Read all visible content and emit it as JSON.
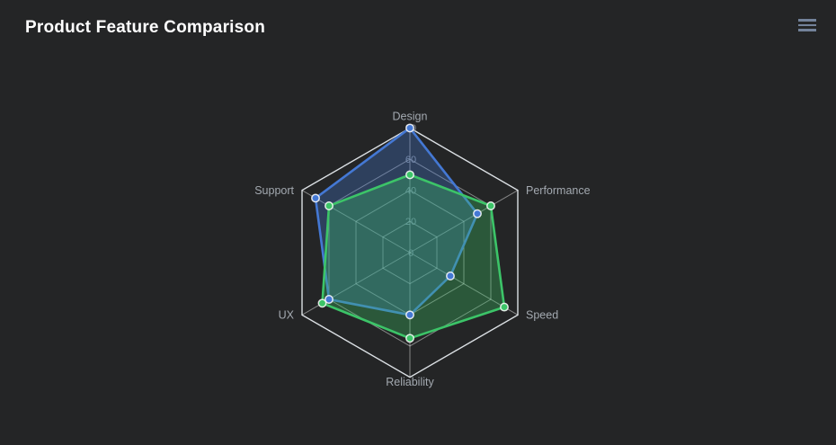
{
  "page": {
    "background": "#242526"
  },
  "header": {
    "title": "Product Feature Comparison",
    "menu_icon": "hamburger-menu"
  },
  "chart_data": {
    "type": "radar",
    "title": "Product Feature Comparison",
    "categories": [
      "Design",
      "Performance",
      "Speed",
      "Reliability",
      "UX",
      "Support"
    ],
    "series": [
      {
        "id": "series-1",
        "color": "#4478d4",
        "fill": "rgba(68,120,212,0.32)",
        "values": [
          80,
          50,
          30,
          40,
          60,
          70
        ]
      },
      {
        "id": "series-2",
        "color": "#3cc468",
        "fill": "rgba(60,196,104,0.32)",
        "values": [
          50,
          60,
          70,
          55,
          65,
          60
        ]
      }
    ],
    "axis": {
      "min": 0,
      "max": 80,
      "tick_interval": 20,
      "tick_labels": [
        "0",
        "20",
        "40",
        "60",
        "80"
      ]
    },
    "grid": {
      "shape": "hexagon",
      "rings": 4,
      "line_color": "rgba(255,255,255,0.45)",
      "outer_line_color": "rgba(236,240,244,0.92)"
    },
    "legend": "none",
    "label_colors": {
      "category": "#a3a9b0",
      "tick": "#8d939b"
    },
    "marker": {
      "radius": 4.2,
      "border_color": "rgba(255,255,255,0.85)"
    }
  }
}
